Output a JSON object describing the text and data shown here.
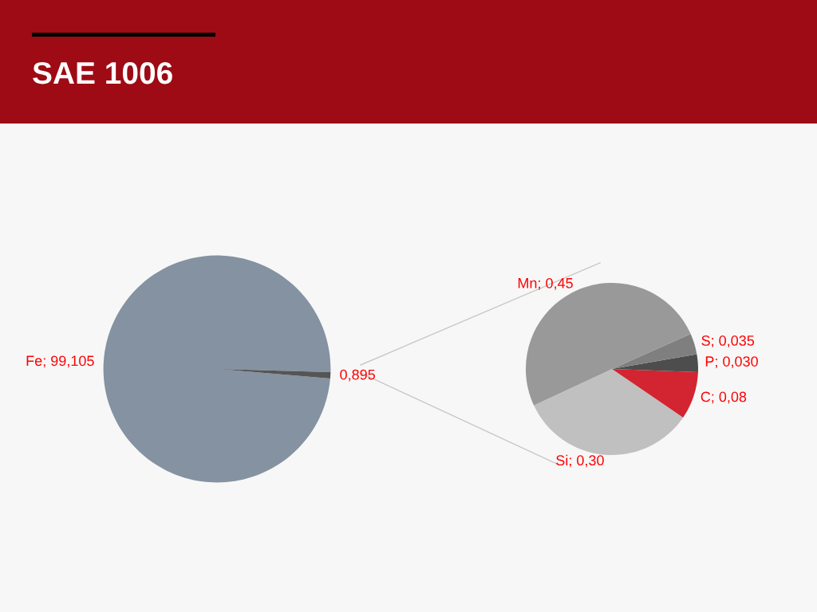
{
  "chart_data": [
    {
      "type": "pie",
      "title": "SAE 1006",
      "categories": [
        "Fe",
        null
      ],
      "values": [
        99.105,
        0.895
      ],
      "value_labels": [
        "99,105",
        "0,895"
      ],
      "colors": [
        "#8492a1",
        "#555555"
      ]
    },
    {
      "type": "pie",
      "categories": [
        "Si",
        "C",
        "P",
        "S",
        "Mn"
      ],
      "values": [
        0.3,
        0.08,
        0.03,
        0.035,
        0.45
      ],
      "value_labels": [
        "0,30",
        "0,08",
        "0,030",
        "0,035",
        "0,45"
      ],
      "colors": [
        "#c0c0c0",
        "#d32431",
        "#4d4d4d",
        "#7f7f7f",
        "#999999"
      ]
    }
  ]
}
